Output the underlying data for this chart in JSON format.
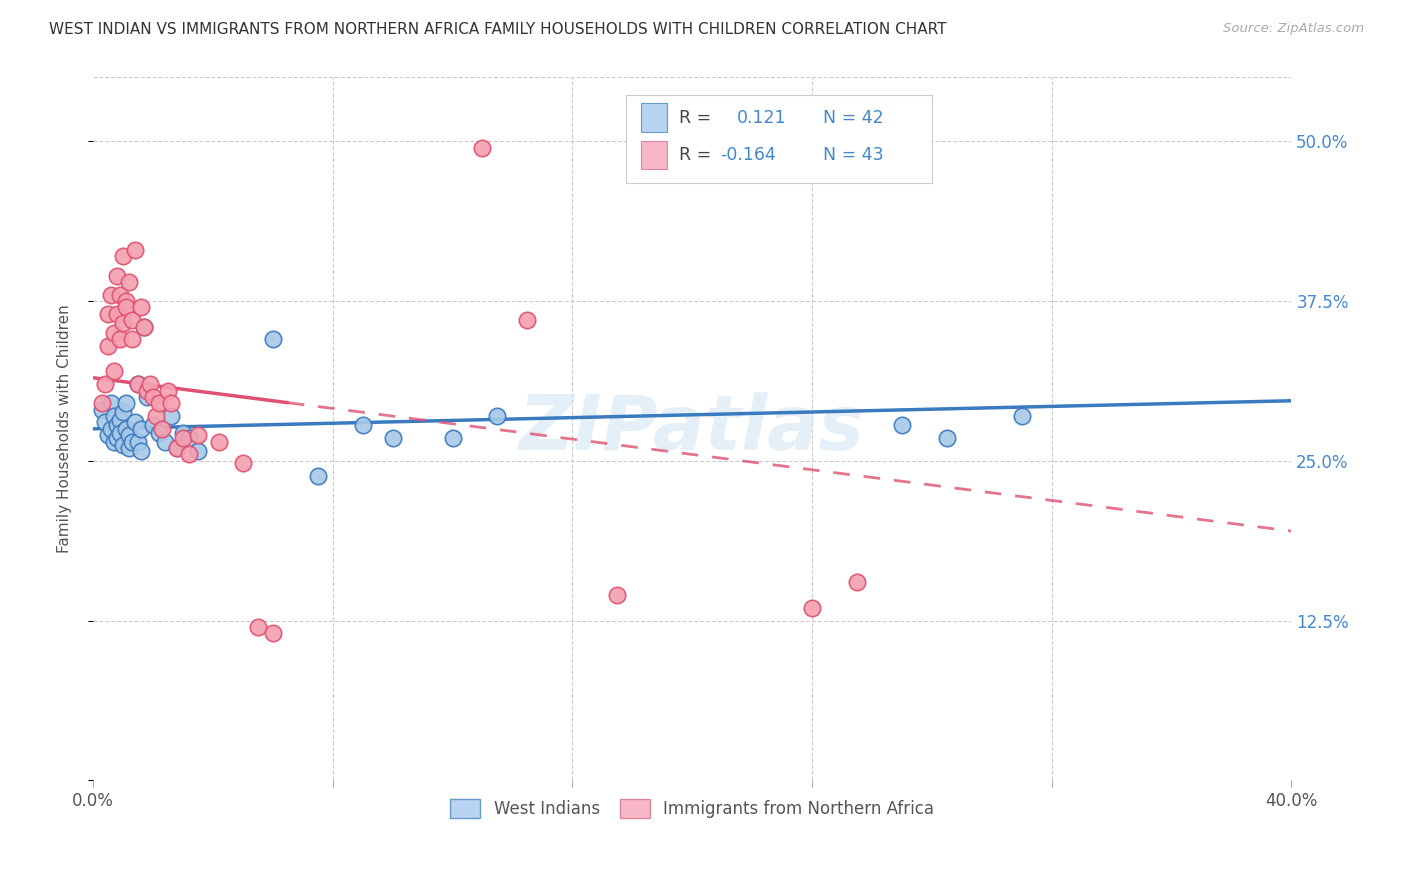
{
  "title": "WEST INDIAN VS IMMIGRANTS FROM NORTHERN AFRICA FAMILY HOUSEHOLDS WITH CHILDREN CORRELATION CHART",
  "source": "Source: ZipAtlas.com",
  "ylabel": "Family Households with Children",
  "xlim": [
    0.0,
    0.4
  ],
  "ylim": [
    0.0,
    0.55
  ],
  "xticks": [
    0.0,
    0.08,
    0.16,
    0.24,
    0.32,
    0.4
  ],
  "yticks": [
    0.0,
    0.125,
    0.25,
    0.375,
    0.5
  ],
  "ytick_labels": [
    "",
    "12.5%",
    "25.0%",
    "37.5%",
    "50.0%"
  ],
  "legend_R1": "0.121",
  "legend_N1": "42",
  "legend_R2": "-0.164",
  "legend_N2": "43",
  "blue_scatter_color": "#a8c8e8",
  "pink_scatter_color": "#f4a0b0",
  "blue_line_color": "#3a7abf",
  "pink_line_color": "#e05070",
  "text_blue_color": "#4488cc",
  "watermark": "ZIPatlas",
  "west_indians_x": [
    0.003,
    0.004,
    0.005,
    0.006,
    0.006,
    0.007,
    0.007,
    0.008,
    0.008,
    0.009,
    0.009,
    0.01,
    0.01,
    0.011,
    0.011,
    0.012,
    0.012,
    0.013,
    0.014,
    0.015,
    0.015,
    0.016,
    0.016,
    0.017,
    0.018,
    0.02,
    0.022,
    0.024,
    0.026,
    0.028,
    0.03,
    0.032,
    0.035,
    0.06,
    0.075,
    0.09,
    0.1,
    0.12,
    0.135,
    0.27,
    0.285,
    0.31
  ],
  "west_indians_y": [
    0.29,
    0.28,
    0.27,
    0.295,
    0.275,
    0.285,
    0.265,
    0.278,
    0.268,
    0.282,
    0.272,
    0.288,
    0.262,
    0.295,
    0.275,
    0.27,
    0.26,
    0.265,
    0.28,
    0.31,
    0.265,
    0.275,
    0.258,
    0.355,
    0.3,
    0.278,
    0.272,
    0.265,
    0.285,
    0.26,
    0.272,
    0.268,
    0.258,
    0.345,
    0.238,
    0.278,
    0.268,
    0.268,
    0.285,
    0.278,
    0.268,
    0.285
  ],
  "north_africa_x": [
    0.003,
    0.004,
    0.005,
    0.005,
    0.006,
    0.007,
    0.007,
    0.008,
    0.008,
    0.009,
    0.009,
    0.01,
    0.01,
    0.011,
    0.011,
    0.012,
    0.013,
    0.013,
    0.014,
    0.015,
    0.016,
    0.017,
    0.018,
    0.019,
    0.02,
    0.021,
    0.022,
    0.023,
    0.025,
    0.026,
    0.028,
    0.03,
    0.032,
    0.035,
    0.042,
    0.05,
    0.055,
    0.06,
    0.13,
    0.145,
    0.175,
    0.24,
    0.255
  ],
  "north_africa_y": [
    0.295,
    0.31,
    0.34,
    0.365,
    0.38,
    0.32,
    0.35,
    0.395,
    0.365,
    0.345,
    0.38,
    0.358,
    0.41,
    0.375,
    0.37,
    0.39,
    0.345,
    0.36,
    0.415,
    0.31,
    0.37,
    0.355,
    0.305,
    0.31,
    0.3,
    0.285,
    0.295,
    0.275,
    0.305,
    0.295,
    0.26,
    0.268,
    0.255,
    0.27,
    0.265,
    0.248,
    0.12,
    0.115,
    0.495,
    0.36,
    0.145,
    0.135,
    0.155
  ]
}
